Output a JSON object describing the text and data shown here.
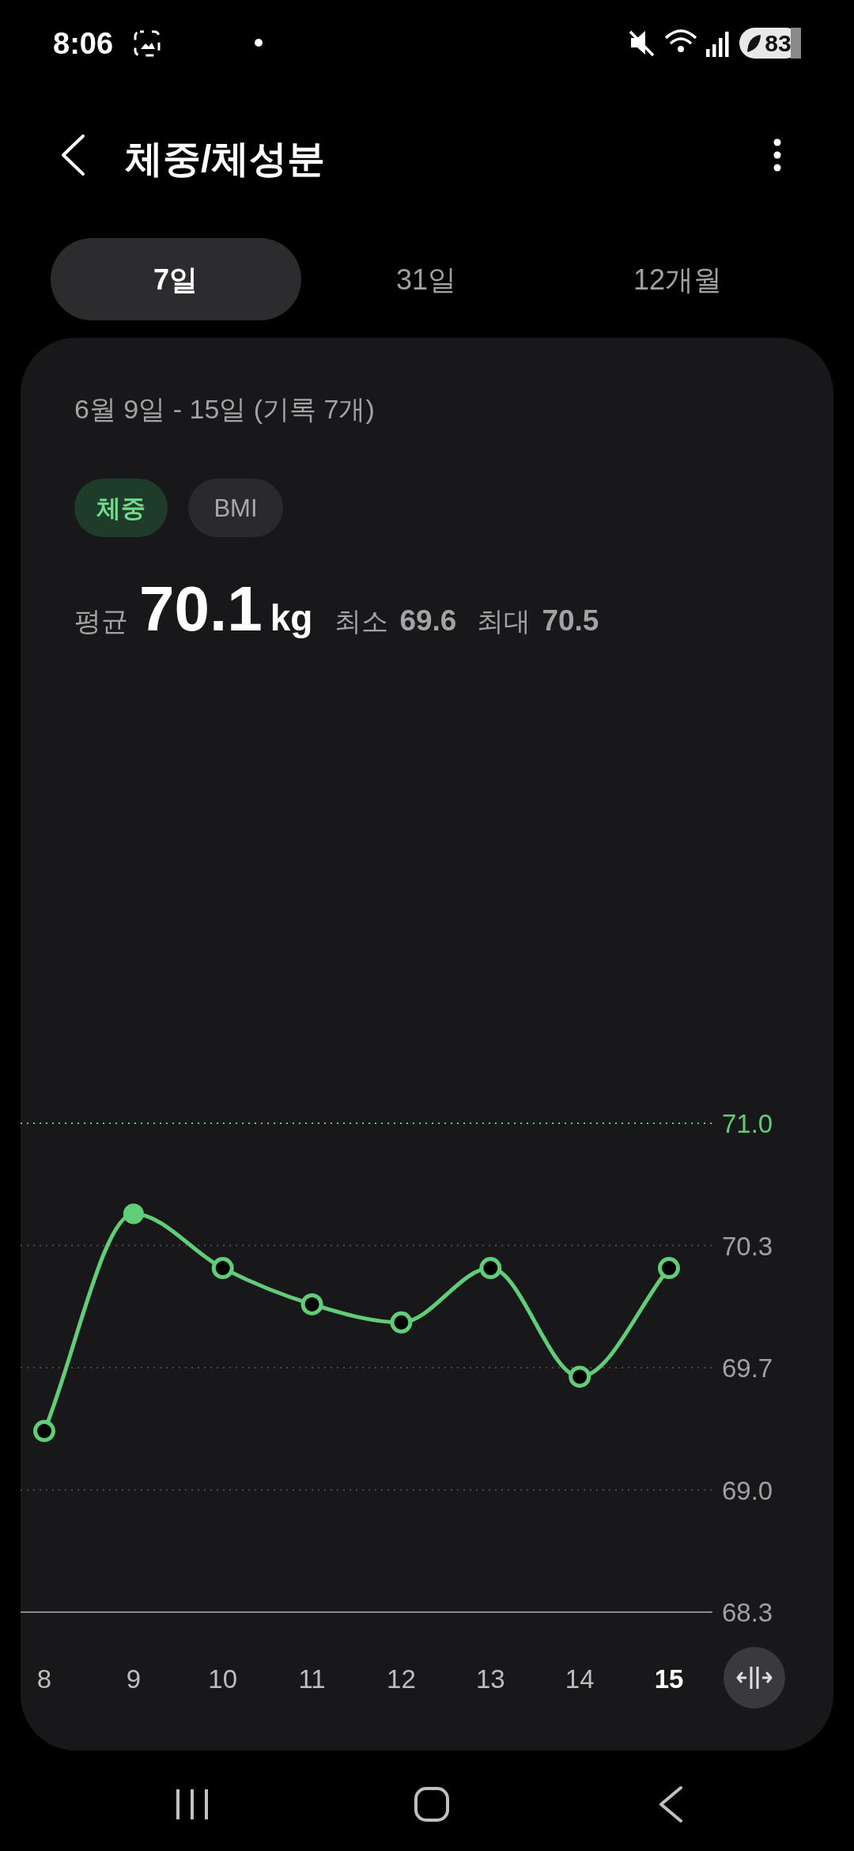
{
  "chart_data": {
    "type": "line",
    "title": "체중/체성분",
    "subtitle": "6월 9일 - 15일 (기록 7개)",
    "annotations": [
      "8:06",
      "83",
      "7일",
      "31일",
      "12개월",
      "체중",
      "BMI",
      "평균",
      "70.1",
      "kg",
      "최소",
      "69.6",
      "최대",
      "70.5"
    ],
    "categories": [
      "8",
      "9",
      "10",
      "11",
      "12",
      "13",
      "14",
      "15"
    ],
    "values": [
      69.3,
      70.5,
      70.2,
      70.0,
      69.9,
      70.2,
      69.6,
      70.2
    ],
    "color": "#62cd78",
    "ylim": [
      68.3,
      71.0
    ],
    "yticks": [
      68.3,
      {
        "value": 68.975,
        "label": "69.0"
      },
      {
        "value": 69.65,
        "label": "69.7"
      },
      {
        "value": 70.325,
        "label": "70.3"
      },
      {
        "value": 71.0,
        "label": "71.0"
      }
    ],
    "grid": "y",
    "marker": "circle",
    "line_style": "solid"
  }
}
